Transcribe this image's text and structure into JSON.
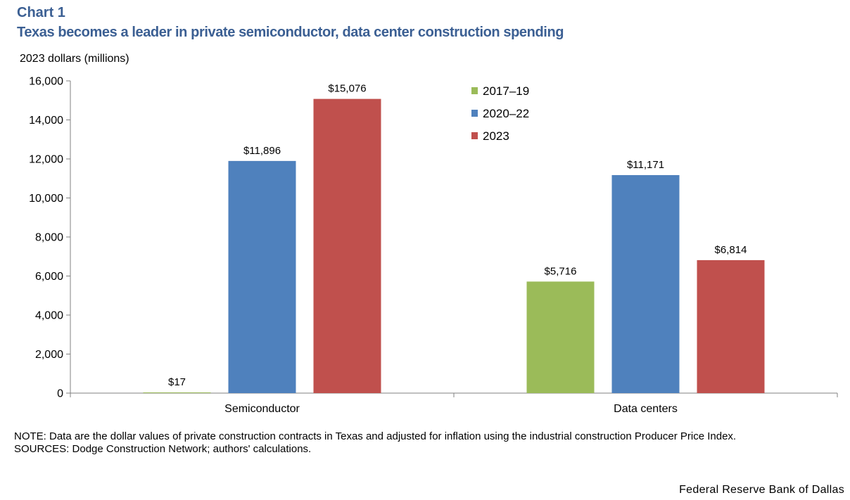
{
  "header": {
    "label": "Chart 1",
    "title": "Texas becomes a leader in private semiconductor, data center construction spending",
    "unit_label": "2023 dollars (millions)"
  },
  "chart_data": {
    "type": "bar",
    "title": "Texas becomes a leader in private semiconductor, data center construction spending",
    "ylabel": "2023 dollars (millions)",
    "xlabel": "",
    "categories": [
      "Semiconductor",
      "Data centers"
    ],
    "series": [
      {
        "name": "2017–19",
        "color": "#9bbb59",
        "values": [
          17,
          5716
        ],
        "labels": [
          "$17",
          "$5,716"
        ]
      },
      {
        "name": "2020–22",
        "color": "#4f81bd",
        "values": [
          11896,
          11171
        ],
        "labels": [
          "$11,896",
          "$11,171"
        ]
      },
      {
        "name": "2023",
        "color": "#c0504d",
        "values": [
          15076,
          6814
        ],
        "labels": [
          "$15,076",
          "$6,814"
        ]
      }
    ],
    "ylim": [
      0,
      16000
    ],
    "yticks": [
      0,
      2000,
      4000,
      6000,
      8000,
      10000,
      12000,
      14000,
      16000
    ],
    "ytick_labels": [
      "0",
      "2,000",
      "4,000",
      "6,000",
      "8,000",
      "10,000",
      "12,000",
      "14,000",
      "16,000"
    ],
    "legend_position": "top-right",
    "grid": false
  },
  "footer": {
    "note": "NOTE: Data are the dollar values of private construction contracts in Texas and adjusted for inflation using the industrial construction Producer Price Index.",
    "sources": "SOURCES: Dodge Construction Network; authors' calculations.",
    "credit": "Federal Reserve Bank of Dallas"
  }
}
